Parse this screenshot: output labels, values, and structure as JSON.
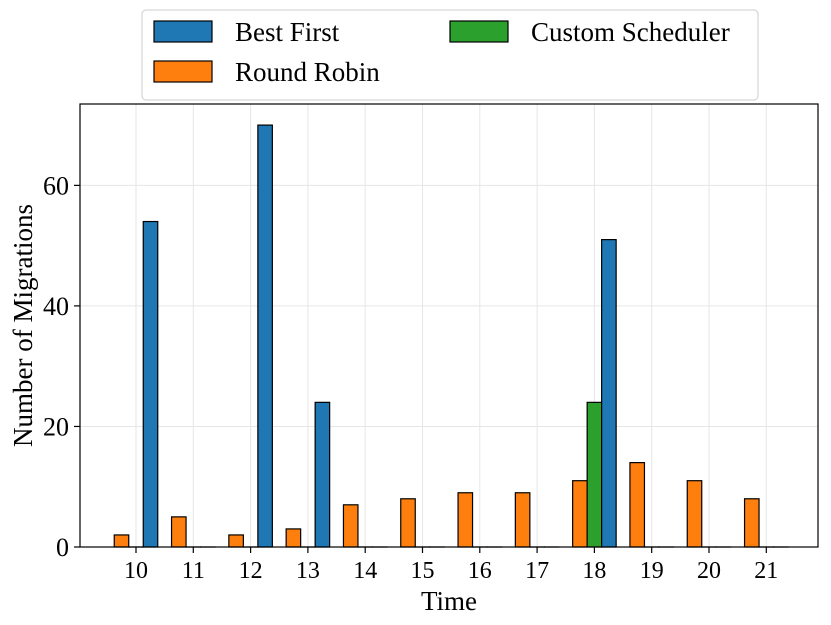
{
  "chart_data": {
    "type": "bar",
    "xlabel": "Time",
    "ylabel": "Number of Migrations",
    "ylim": [
      0,
      73.5
    ],
    "yticks": [
      0,
      20,
      40,
      60
    ],
    "categories": [
      "10",
      "11",
      "12",
      "13",
      "14",
      "15",
      "16",
      "17",
      "18",
      "19",
      "20",
      "21"
    ],
    "grid": true,
    "legend_placement": "top-center",
    "series": [
      {
        "name": "Round Robin",
        "color": "#ff7f0e",
        "values": [
          2,
          5,
          2,
          3,
          7,
          8,
          9,
          9,
          11,
          14,
          11,
          8
        ]
      },
      {
        "name": "Custom Scheduler",
        "color": "#2ca02c",
        "values": [
          0,
          0,
          0,
          0,
          0,
          0,
          0,
          0,
          24,
          0,
          0,
          0
        ]
      },
      {
        "name": "Best First",
        "color": "#1f77b4",
        "values": [
          54,
          0,
          70,
          24,
          0,
          0,
          0,
          0,
          51,
          0,
          0,
          0
        ]
      }
    ],
    "legend_order": [
      "Best First",
      "Round Robin",
      "Custom Scheduler"
    ]
  }
}
